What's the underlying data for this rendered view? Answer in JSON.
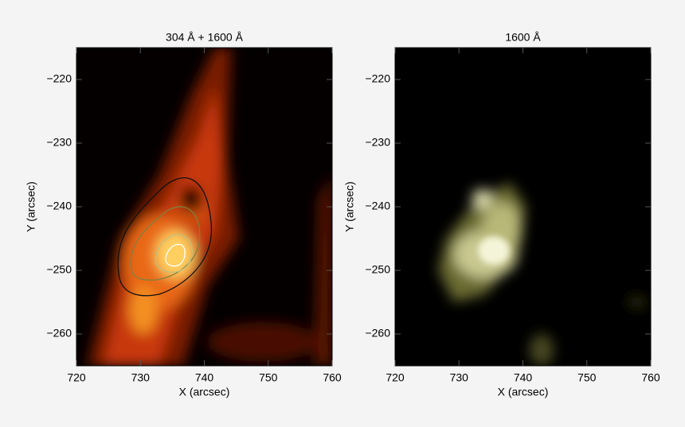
{
  "chart_data": [
    {
      "type": "image",
      "title": "304 Å + 1600 Å",
      "xlabel": "X (arcsec)",
      "ylabel": "Y (arcsec)",
      "xlim": [
        720,
        760
      ],
      "ylim": [
        -265,
        -215
      ],
      "xticks": [
        720,
        730,
        740,
        750,
        760
      ],
      "yticks": [
        {
          "value": -220,
          "label": "−220"
        },
        {
          "value": -230,
          "label": "−230"
        },
        {
          "value": -240,
          "label": "−240"
        },
        {
          "value": -250,
          "label": "−250"
        },
        {
          "value": -260,
          "label": "−260"
        }
      ]
    },
    {
      "type": "image",
      "title": "1600 Å",
      "xlabel": "X (arcsec)",
      "ylabel": "Y (arcsec)",
      "xlim": [
        720,
        760
      ],
      "ylim": [
        -265,
        -215
      ],
      "xticks": [
        720,
        730,
        740,
        750,
        760
      ],
      "yticks": [
        {
          "value": -220,
          "label": "−220"
        },
        {
          "value": -230,
          "label": "−230"
        },
        {
          "value": -240,
          "label": "−240"
        },
        {
          "value": -250,
          "label": "−250"
        },
        {
          "value": -260,
          "label": "−260"
        }
      ]
    }
  ]
}
